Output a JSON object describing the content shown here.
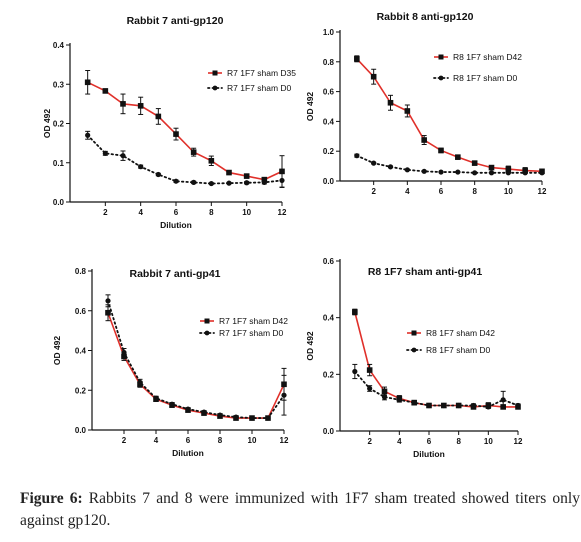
{
  "chart_data": [
    {
      "type": "line",
      "title": "Rabbit  7 anti-gp120",
      "xlabel": "Dilution",
      "ylabel": "OD 492",
      "xlim": [
        0,
        12
      ],
      "ylim": [
        0,
        0.4
      ],
      "xticks": [
        2,
        4,
        6,
        8,
        10,
        12
      ],
      "yticks": [
        0.0,
        0.1,
        0.2,
        0.3,
        0.4
      ],
      "legend_position": "top-right",
      "series": [
        {
          "name": "R7 1F7 sham D35",
          "style": "solid",
          "color": "#e0302a",
          "marker": "square",
          "x": [
            1,
            2,
            3,
            4,
            5,
            6,
            7,
            8,
            9,
            10,
            11,
            12
          ],
          "y": [
            0.305,
            0.283,
            0.25,
            0.245,
            0.218,
            0.173,
            0.127,
            0.105,
            0.075,
            0.066,
            0.057,
            0.078
          ],
          "err": [
            0.03,
            0.005,
            0.025,
            0.022,
            0.02,
            0.015,
            0.01,
            0.012,
            0.005,
            0.005,
            0.005,
            0.04
          ]
        },
        {
          "name": "R7 1F7 sham D0",
          "style": "dotted",
          "color": "#111111",
          "marker": "circle",
          "x": [
            1,
            2,
            3,
            4,
            5,
            6,
            7,
            8,
            9,
            10,
            11,
            12
          ],
          "y": [
            0.17,
            0.124,
            0.118,
            0.09,
            0.07,
            0.053,
            0.05,
            0.047,
            0.048,
            0.049,
            0.05,
            0.055
          ],
          "err": [
            0.01,
            0.005,
            0.012,
            0.004,
            0.003,
            0.003,
            0.003,
            0.002,
            0.002,
            0.003,
            0.004,
            0.018
          ]
        }
      ]
    },
    {
      "type": "line",
      "title": "Rabbit 8 anti-gp120",
      "xlabel": "",
      "ylabel": "OD 492",
      "xlim": [
        0,
        12
      ],
      "ylim": [
        0,
        1.0
      ],
      "xticks": [
        2,
        4,
        6,
        8,
        10,
        12
      ],
      "yticks": [
        0.0,
        0.2,
        0.4,
        0.6,
        0.8,
        1.0
      ],
      "legend_position": "top-right",
      "series": [
        {
          "name": "R8 1F7 sham D42",
          "style": "solid",
          "color": "#e0302a",
          "marker": "square",
          "x": [
            1,
            2,
            3,
            4,
            5,
            6,
            7,
            8,
            9,
            10,
            11,
            12
          ],
          "y": [
            0.82,
            0.7,
            0.525,
            0.47,
            0.275,
            0.205,
            0.16,
            0.12,
            0.09,
            0.08,
            0.07,
            0.065
          ],
          "err": [
            0.02,
            0.05,
            0.05,
            0.04,
            0.03,
            0.015,
            0.01,
            0.01,
            0.008,
            0.02,
            0.02,
            0.01
          ]
        },
        {
          "name": "R8 1F7 sham D0",
          "style": "dotted",
          "color": "#111111",
          "marker": "circle",
          "x": [
            1,
            2,
            3,
            4,
            5,
            6,
            7,
            8,
            9,
            10,
            11,
            12
          ],
          "y": [
            0.17,
            0.12,
            0.095,
            0.075,
            0.065,
            0.06,
            0.06,
            0.055,
            0.055,
            0.055,
            0.055,
            0.055
          ],
          "err": [
            0.01,
            0.005,
            0.005,
            0.004,
            0.003,
            0.003,
            0.003,
            0.003,
            0.003,
            0.003,
            0.003,
            0.003
          ]
        }
      ]
    },
    {
      "type": "line",
      "title": "Rabbit 7 anti-gp41",
      "xlabel": "Dilution",
      "ylabel": "OD 492",
      "xlim": [
        0,
        12
      ],
      "ylim": [
        0,
        0.8
      ],
      "xticks": [
        2,
        4,
        6,
        8,
        10,
        12
      ],
      "yticks": [
        0.0,
        0.2,
        0.4,
        0.6,
        0.8
      ],
      "legend_position": "right",
      "series": [
        {
          "name": "R7 1F7 sham D42",
          "style": "solid",
          "color": "#e0302a",
          "marker": "square",
          "x": [
            1,
            2,
            3,
            4,
            5,
            6,
            7,
            8,
            9,
            10,
            11,
            12
          ],
          "y": [
            0.59,
            0.37,
            0.23,
            0.155,
            0.125,
            0.1,
            0.085,
            0.07,
            0.06,
            0.06,
            0.06,
            0.23
          ],
          "err": [
            0.04,
            0.02,
            0.015,
            0.01,
            0.008,
            0.006,
            0.005,
            0.004,
            0.004,
            0.004,
            0.004,
            0.08
          ]
        },
        {
          "name": "R7 1F7 sham D0",
          "style": "dotted",
          "color": "#111111",
          "marker": "circle",
          "x": [
            1,
            2,
            3,
            4,
            5,
            6,
            7,
            8,
            9,
            10,
            11,
            12
          ],
          "y": [
            0.65,
            0.39,
            0.24,
            0.16,
            0.13,
            0.105,
            0.09,
            0.075,
            0.065,
            0.06,
            0.06,
            0.175
          ],
          "err": [
            0.03,
            0.02,
            0.015,
            0.01,
            0.008,
            0.006,
            0.005,
            0.004,
            0.004,
            0.004,
            0.004,
            0.1
          ]
        }
      ]
    },
    {
      "type": "line",
      "title": "R8 1F7 sham anti-gp41",
      "xlabel": "Dilution",
      "ylabel": "OD 492",
      "xlim": [
        0,
        12
      ],
      "ylim": [
        0,
        0.6
      ],
      "xticks": [
        2,
        4,
        6,
        8,
        10,
        12
      ],
      "yticks": [
        0.0,
        0.2,
        0.4,
        0.6
      ],
      "legend_position": "right",
      "series": [
        {
          "name": "R8 1F7 sham D42",
          "style": "solid",
          "color": "#e0302a",
          "marker": "square",
          "x": [
            1,
            2,
            3,
            4,
            5,
            6,
            7,
            8,
            9,
            10,
            11,
            12
          ],
          "y": [
            0.42,
            0.215,
            0.14,
            0.115,
            0.1,
            0.09,
            0.09,
            0.09,
            0.085,
            0.09,
            0.085,
            0.085
          ],
          "err": [
            0.01,
            0.02,
            0.015,
            0.01,
            0.008,
            0.006,
            0.006,
            0.006,
            0.005,
            0.01,
            0.005,
            0.006
          ]
        },
        {
          "name": "R8 1F7 sham D0",
          "style": "dotted",
          "color": "#111111",
          "marker": "circle",
          "x": [
            1,
            2,
            3,
            4,
            5,
            6,
            7,
            8,
            9,
            10,
            11,
            12
          ],
          "y": [
            0.21,
            0.15,
            0.12,
            0.11,
            0.1,
            0.09,
            0.09,
            0.09,
            0.09,
            0.085,
            0.11,
            0.09
          ],
          "err": [
            0.025,
            0.01,
            0.01,
            0.008,
            0.006,
            0.005,
            0.005,
            0.005,
            0.006,
            0.005,
            0.03,
            0.006
          ]
        }
      ]
    }
  ],
  "caption": {
    "label": "Figure 6:",
    "text": " Rabbits 7 and 8 were immunized with 1F7 sham treated showed titers only against gp120."
  }
}
